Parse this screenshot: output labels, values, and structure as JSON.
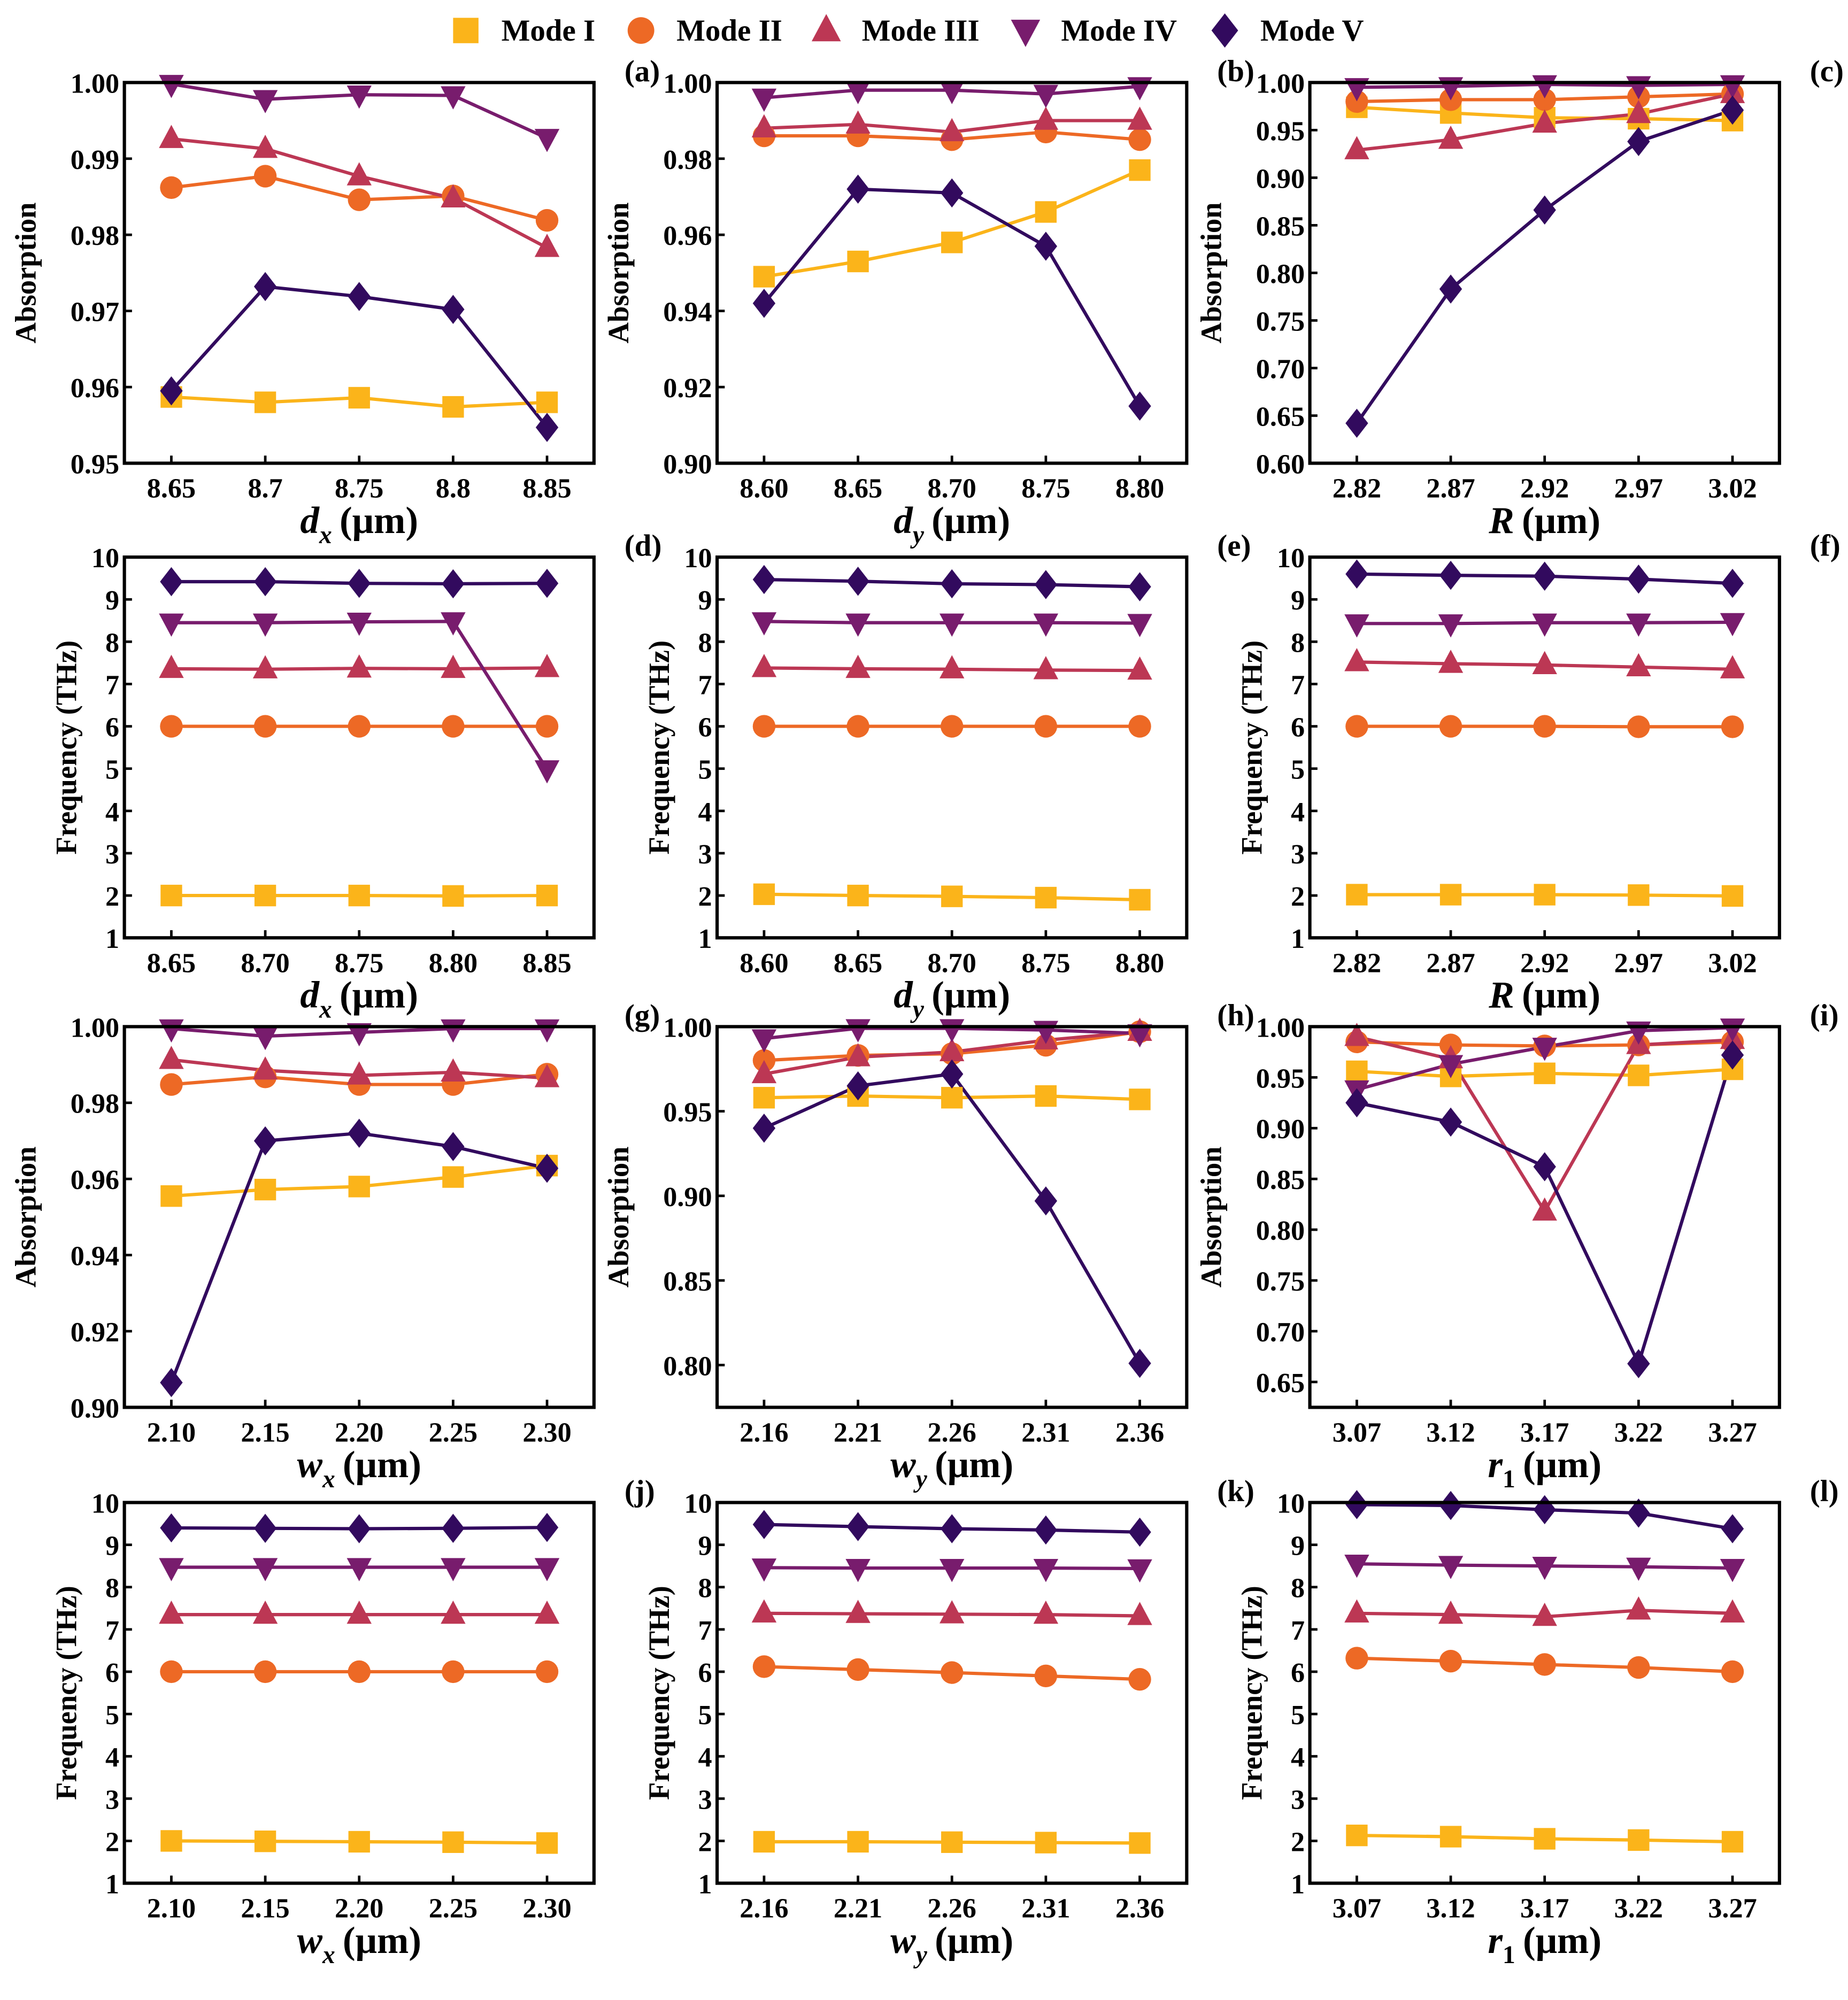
{
  "legend": [
    {
      "name": "Mode I",
      "marker": "square",
      "color": "#FBB41A"
    },
    {
      "name": "Mode II",
      "marker": "circle",
      "color": "#ED6925"
    },
    {
      "name": "Mode III",
      "marker": "triangle-up",
      "color": "#BC3754"
    },
    {
      "name": "Mode IV",
      "marker": "triangle-down",
      "color": "#781C6D"
    },
    {
      "name": "Mode V",
      "marker": "diamond",
      "color": "#320A5E"
    }
  ],
  "chart_data": [
    {
      "type": "line",
      "panel_label": "(a)",
      "ylabel": "Absorption",
      "xlabel": {
        "var": "d",
        "sub": "x",
        "unit": "(μm)"
      },
      "categories": [
        "8.65",
        "8.7",
        "8.75",
        "8.8",
        "8.85"
      ],
      "ylim": [
        0.95,
        1.0
      ],
      "yticks": [
        "0.95",
        "0.96",
        "0.97",
        "0.98",
        "0.99",
        "1.00"
      ],
      "series": [
        {
          "name": "Mode I",
          "values": [
            0.9587,
            0.958,
            0.9586,
            0.9574,
            0.958
          ]
        },
        {
          "name": "Mode II",
          "values": [
            0.9862,
            0.9877,
            0.9846,
            0.9851,
            0.9819
          ]
        },
        {
          "name": "Mode III",
          "values": [
            0.9926,
            0.9913,
            0.9877,
            0.9848,
            0.9783
          ]
        },
        {
          "name": "Mode IV",
          "values": [
            0.9998,
            0.9978,
            0.9984,
            0.9983,
            0.9927
          ]
        },
        {
          "name": "Mode V",
          "values": [
            0.9595,
            0.9732,
            0.9719,
            0.9702,
            0.9547
          ]
        }
      ]
    },
    {
      "type": "line",
      "panel_label": "(b)",
      "ylabel": "Absorption",
      "xlabel": {
        "var": "d",
        "sub": "y",
        "unit": "(μm)"
      },
      "categories": [
        "8.60",
        "8.65",
        "8.70",
        "8.75",
        "8.80"
      ],
      "ylim": [
        0.9,
        1.0
      ],
      "yticks": [
        "0.90",
        "0.92",
        "0.94",
        "0.96",
        "0.98",
        "1.00"
      ],
      "series": [
        {
          "name": "Mode I",
          "values": [
            0.949,
            0.953,
            0.958,
            0.966,
            0.977
          ]
        },
        {
          "name": "Mode II",
          "values": [
            0.986,
            0.986,
            0.985,
            0.987,
            0.985
          ]
        },
        {
          "name": "Mode III",
          "values": [
            0.988,
            0.989,
            0.987,
            0.99,
            0.99
          ]
        },
        {
          "name": "Mode IV",
          "values": [
            0.996,
            0.998,
            0.998,
            0.997,
            0.999
          ]
        },
        {
          "name": "Mode V",
          "values": [
            0.942,
            0.972,
            0.971,
            0.957,
            0.915
          ]
        }
      ]
    },
    {
      "type": "line",
      "panel_label": "(c)",
      "ylabel": "Absorption",
      "xlabel": {
        "var": "R",
        "sub": "",
        "unit": "(μm)"
      },
      "categories": [
        "2.82",
        "2.87",
        "2.92",
        "2.97",
        "3.02"
      ],
      "ylim": [
        0.6,
        1.0
      ],
      "yticks": [
        "0.60",
        "0.65",
        "0.70",
        "0.75",
        "0.80",
        "0.85",
        "0.90",
        "0.95",
        "1.00"
      ],
      "series": [
        {
          "name": "Mode I",
          "values": [
            0.974,
            0.968,
            0.963,
            0.962,
            0.96
          ]
        },
        {
          "name": "Mode II",
          "values": [
            0.98,
            0.982,
            0.982,
            0.985,
            0.988
          ]
        },
        {
          "name": "Mode III",
          "values": [
            0.929,
            0.94,
            0.957,
            0.967,
            0.988
          ]
        },
        {
          "name": "Mode IV",
          "values": [
            0.995,
            0.996,
            0.998,
            0.997,
            0.998
          ]
        },
        {
          "name": "Mode V",
          "values": [
            0.642,
            0.783,
            0.866,
            0.938,
            0.971
          ]
        }
      ]
    },
    {
      "type": "line",
      "panel_label": "(d)",
      "ylabel": "Frequency (THz)",
      "xlabel": {
        "var": "d",
        "sub": "x",
        "unit": "(μm)"
      },
      "categories": [
        "8.65",
        "8.70",
        "8.75",
        "8.80",
        "8.85"
      ],
      "ylim": [
        1,
        10
      ],
      "yticks": [
        "1",
        "2",
        "3",
        "4",
        "5",
        "6",
        "7",
        "8",
        "9",
        "10"
      ],
      "series": [
        {
          "name": "Mode I",
          "values": [
            2.0,
            2.0,
            2.0,
            1.99,
            2.0
          ]
        },
        {
          "name": "Mode II",
          "values": [
            6.0,
            6.0,
            6.0,
            6.0,
            6.0
          ]
        },
        {
          "name": "Mode III",
          "values": [
            7.36,
            7.35,
            7.37,
            7.36,
            7.38
          ]
        },
        {
          "name": "Mode IV",
          "values": [
            8.45,
            8.45,
            8.47,
            8.48,
            4.98
          ]
        },
        {
          "name": "Mode V",
          "values": [
            9.42,
            9.42,
            9.38,
            9.37,
            9.38
          ]
        }
      ]
    },
    {
      "type": "line",
      "panel_label": "(e)",
      "ylabel": "Frequency (THz)",
      "xlabel": {
        "var": "d",
        "sub": "y",
        "unit": "(μm)"
      },
      "categories": [
        "8.60",
        "8.65",
        "8.70",
        "8.75",
        "8.80"
      ],
      "ylim": [
        1,
        10
      ],
      "yticks": [
        "1",
        "2",
        "3",
        "4",
        "5",
        "6",
        "7",
        "8",
        "9",
        "10"
      ],
      "series": [
        {
          "name": "Mode I",
          "values": [
            2.03,
            2.0,
            1.98,
            1.95,
            1.9
          ]
        },
        {
          "name": "Mode II",
          "values": [
            6.0,
            6.0,
            6.0,
            6.0,
            6.0
          ]
        },
        {
          "name": "Mode III",
          "values": [
            7.38,
            7.36,
            7.35,
            7.33,
            7.32
          ]
        },
        {
          "name": "Mode IV",
          "values": [
            8.48,
            8.45,
            8.45,
            8.45,
            8.44
          ]
        },
        {
          "name": "Mode V",
          "values": [
            9.47,
            9.43,
            9.37,
            9.35,
            9.3
          ]
        }
      ]
    },
    {
      "type": "line",
      "panel_label": "(f)",
      "ylabel": "Frequency (THz)",
      "xlabel": {
        "var": "R",
        "sub": "",
        "unit": "(μm)"
      },
      "categories": [
        "2.82",
        "2.87",
        "2.92",
        "2.97",
        "3.02"
      ],
      "ylim": [
        1,
        10
      ],
      "yticks": [
        "1",
        "2",
        "3",
        "4",
        "5",
        "6",
        "7",
        "8",
        "9",
        "10"
      ],
      "series": [
        {
          "name": "Mode I",
          "values": [
            2.02,
            2.02,
            2.02,
            2.01,
            1.99
          ]
        },
        {
          "name": "Mode II",
          "values": [
            6.0,
            6.0,
            6.0,
            5.99,
            5.99
          ]
        },
        {
          "name": "Mode III",
          "values": [
            7.52,
            7.48,
            7.45,
            7.4,
            7.35
          ]
        },
        {
          "name": "Mode IV",
          "values": [
            8.43,
            8.43,
            8.45,
            8.45,
            8.46
          ]
        },
        {
          "name": "Mode V",
          "values": [
            9.6,
            9.57,
            9.55,
            9.48,
            9.38
          ]
        }
      ]
    },
    {
      "type": "line",
      "panel_label": "(g)",
      "ylabel": "Absorption",
      "xlabel": {
        "var": "w",
        "sub": "x",
        "unit": "(μm)"
      },
      "categories": [
        "2.10",
        "2.15",
        "2.20",
        "2.25",
        "2.30"
      ],
      "ylim": [
        0.9,
        1.0
      ],
      "yticks": [
        "0.90",
        "0.92",
        "0.94",
        "0.96",
        "0.98",
        "1.00"
      ],
      "series": [
        {
          "name": "Mode I",
          "values": [
            0.9555,
            0.9572,
            0.958,
            0.9605,
            0.9635
          ]
        },
        {
          "name": "Mode II",
          "values": [
            0.9848,
            0.9868,
            0.9848,
            0.9848,
            0.9875
          ]
        },
        {
          "name": "Mode III",
          "values": [
            0.9913,
            0.9885,
            0.9872,
            0.988,
            0.9865
          ]
        },
        {
          "name": "Mode IV",
          "values": [
            0.9995,
            0.9975,
            0.9985,
            0.9995,
            0.9995
          ]
        },
        {
          "name": "Mode V",
          "values": [
            0.9065,
            0.97,
            0.972,
            0.9685,
            0.9628
          ]
        }
      ]
    },
    {
      "type": "line",
      "panel_label": "(h)",
      "ylabel": "Absorption",
      "xlabel": {
        "var": "w",
        "sub": "y",
        "unit": "(μm)"
      },
      "categories": [
        "2.16",
        "2.21",
        "2.26",
        "2.31",
        "2.36"
      ],
      "ylim": [
        0.775,
        1.0
      ],
      "yticks": [
        "0.80",
        "0.85",
        "0.90",
        "0.95",
        "1.00"
      ],
      "series": [
        {
          "name": "Mode I",
          "values": [
            0.958,
            0.959,
            0.958,
            0.959,
            0.957
          ]
        },
        {
          "name": "Mode II",
          "values": [
            0.98,
            0.983,
            0.984,
            0.989,
            0.997
          ]
        },
        {
          "name": "Mode III",
          "values": [
            0.972,
            0.982,
            0.985,
            0.992,
            0.997
          ]
        },
        {
          "name": "Mode IV",
          "values": [
            0.993,
            0.999,
            0.999,
            0.998,
            0.996
          ]
        },
        {
          "name": "Mode V",
          "values": [
            0.94,
            0.965,
            0.972,
            0.897,
            0.801
          ]
        }
      ]
    },
    {
      "type": "line",
      "panel_label": "(i)",
      "ylabel": "Absorption",
      "xlabel": {
        "var": "r",
        "sub": "1",
        "unit": "(μm)"
      },
      "categories": [
        "3.07",
        "3.12",
        "3.17",
        "3.22",
        "3.27"
      ],
      "ylim": [
        0.625,
        1.0
      ],
      "yticks": [
        "0.65",
        "0.70",
        "0.75",
        "0.80",
        "0.85",
        "0.90",
        "0.95",
        "1.00"
      ],
      "series": [
        {
          "name": "Mode I",
          "values": [
            0.956,
            0.951,
            0.954,
            0.952,
            0.958
          ]
        },
        {
          "name": "Mode II",
          "values": [
            0.985,
            0.982,
            0.981,
            0.982,
            0.985
          ]
        },
        {
          "name": "Mode III",
          "values": [
            0.99,
            0.968,
            0.818,
            0.982,
            0.987
          ]
        },
        {
          "name": "Mode IV",
          "values": [
            0.938,
            0.963,
            0.98,
            0.996,
            0.999
          ]
        },
        {
          "name": "Mode V",
          "values": [
            0.925,
            0.906,
            0.862,
            0.668,
            0.972
          ]
        }
      ]
    },
    {
      "type": "line",
      "panel_label": "(j)",
      "ylabel": "Frequency (THz)",
      "xlabel": {
        "var": "w",
        "sub": "x",
        "unit": "(μm)"
      },
      "categories": [
        "2.10",
        "2.15",
        "2.20",
        "2.25",
        "2.30"
      ],
      "ylim": [
        1,
        10
      ],
      "yticks": [
        "1",
        "2",
        "3",
        "4",
        "5",
        "6",
        "7",
        "8",
        "9",
        "10"
      ],
      "series": [
        {
          "name": "Mode I",
          "values": [
            2.0,
            1.99,
            1.98,
            1.97,
            1.95
          ]
        },
        {
          "name": "Mode II",
          "values": [
            6.0,
            6.0,
            6.0,
            6.0,
            6.0
          ]
        },
        {
          "name": "Mode III",
          "values": [
            7.35,
            7.35,
            7.35,
            7.35,
            7.35
          ]
        },
        {
          "name": "Mode IV",
          "values": [
            8.47,
            8.47,
            8.47,
            8.47,
            8.47
          ]
        },
        {
          "name": "Mode V",
          "values": [
            9.4,
            9.39,
            9.38,
            9.39,
            9.41
          ]
        }
      ]
    },
    {
      "type": "line",
      "panel_label": "(k)",
      "ylabel": "Frequency (THz)",
      "xlabel": {
        "var": "w",
        "sub": "y",
        "unit": "(μm)"
      },
      "categories": [
        "2.16",
        "2.21",
        "2.26",
        "2.31",
        "2.36"
      ],
      "ylim": [
        1,
        10
      ],
      "yticks": [
        "1",
        "2",
        "3",
        "4",
        "5",
        "6",
        "7",
        "8",
        "9",
        "10"
      ],
      "series": [
        {
          "name": "Mode I",
          "values": [
            1.98,
            1.98,
            1.97,
            1.96,
            1.95
          ]
        },
        {
          "name": "Mode II",
          "values": [
            6.12,
            6.05,
            5.98,
            5.9,
            5.82
          ]
        },
        {
          "name": "Mode III",
          "values": [
            7.38,
            7.37,
            7.36,
            7.35,
            7.32
          ]
        },
        {
          "name": "Mode IV",
          "values": [
            8.46,
            8.45,
            8.45,
            8.45,
            8.44
          ]
        },
        {
          "name": "Mode V",
          "values": [
            9.48,
            9.43,
            9.38,
            9.35,
            9.3
          ]
        }
      ]
    },
    {
      "type": "line",
      "panel_label": "(l)",
      "ylabel": "Frequency (THz)",
      "xlabel": {
        "var": "r",
        "sub": "1",
        "unit": "(μm)"
      },
      "categories": [
        "3.07",
        "3.12",
        "3.17",
        "3.22",
        "3.27"
      ],
      "ylim": [
        1,
        10
      ],
      "yticks": [
        "1",
        "2",
        "3",
        "4",
        "5",
        "6",
        "7",
        "8",
        "9",
        "10"
      ],
      "series": [
        {
          "name": "Mode I",
          "values": [
            2.13,
            2.1,
            2.05,
            2.02,
            1.98
          ]
        },
        {
          "name": "Mode II",
          "values": [
            6.32,
            6.25,
            6.17,
            6.1,
            6.0
          ]
        },
        {
          "name": "Mode III",
          "values": [
            7.38,
            7.35,
            7.3,
            7.45,
            7.38
          ]
        },
        {
          "name": "Mode IV",
          "values": [
            8.55,
            8.52,
            8.5,
            8.48,
            8.45
          ]
        },
        {
          "name": "Mode V",
          "values": [
            9.95,
            9.93,
            9.83,
            9.75,
            9.38
          ]
        }
      ]
    }
  ]
}
